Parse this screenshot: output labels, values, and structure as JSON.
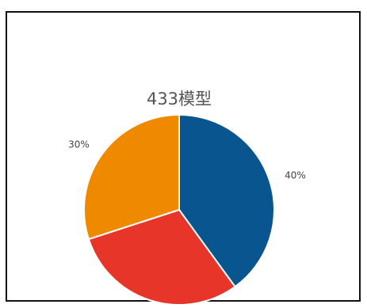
{
  "chart_data": {
    "type": "pie",
    "title": "433模型",
    "slices": [
      {
        "value": 40,
        "label": "40%",
        "color": "#08558f"
      },
      {
        "value": 30,
        "label": "",
        "color": "#e7352a"
      },
      {
        "value": 30,
        "label": "30%",
        "color": "#ee8900"
      }
    ],
    "start_angle_deg": 0,
    "direction": "clockwise",
    "slice_border_color": "#ffffff"
  }
}
